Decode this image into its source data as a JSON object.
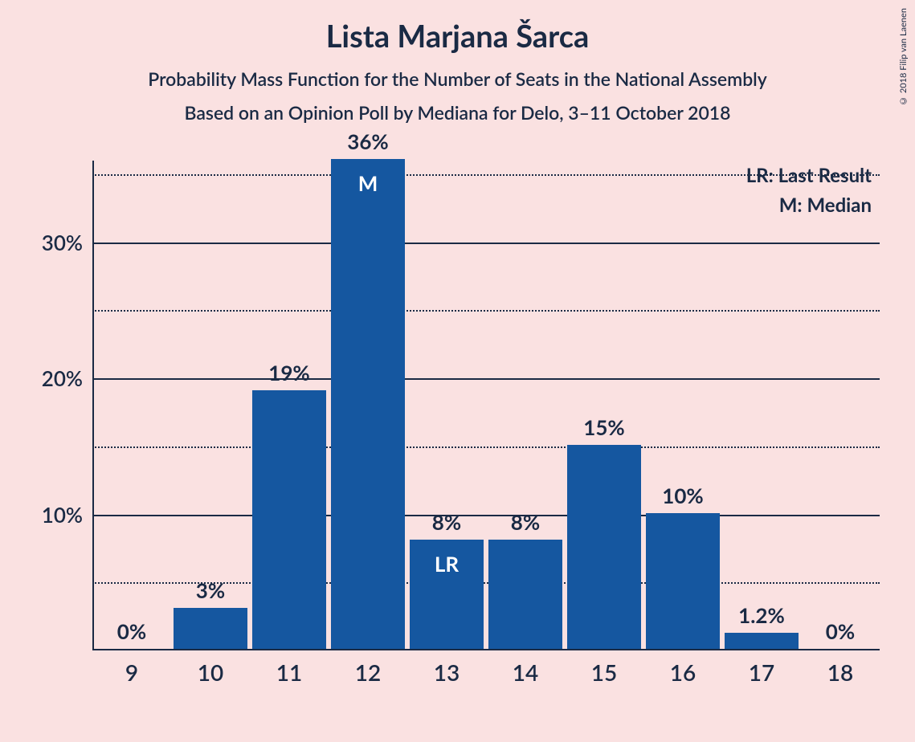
{
  "title": "Lista Marjana Šarca",
  "subtitle1": "Probability Mass Function for the Number of Seats in the National Assembly",
  "subtitle2": "Based on an Opinion Poll by Mediana for Delo, 3–11 October 2018",
  "copyright": "© 2018 Filip van Laenen",
  "legend": {
    "lr": "LR: Last Result",
    "m": "M: Median"
  },
  "chart": {
    "type": "bar",
    "bar_color": "#1557a0",
    "background_color": "#fae1e1",
    "axis_color": "#1a2a44",
    "text_color": "#1a2a44",
    "bar_label_color": "#ffffff",
    "title_fontsize": 38,
    "subtitle_fontsize": 23,
    "axis_label_fontsize": 26,
    "value_label_fontsize": 26,
    "x_label_fontsize": 28,
    "ylim": [
      0,
      36
    ],
    "y_major_ticks": [
      10,
      20,
      30
    ],
    "y_minor_ticks": [
      5,
      15,
      25,
      35
    ],
    "bar_width_ratio": 0.94,
    "categories": [
      "9",
      "10",
      "11",
      "12",
      "13",
      "14",
      "15",
      "16",
      "17",
      "18"
    ],
    "values": [
      0,
      3,
      19,
      36,
      8,
      8,
      15,
      10,
      1.2,
      0
    ],
    "value_labels": [
      "0%",
      "3%",
      "19%",
      "36%",
      "8%",
      "8%",
      "15%",
      "10%",
      "1.2%",
      "0%"
    ],
    "inner_labels": {
      "3": "M",
      "4": "LR"
    },
    "y_tick_labels": {
      "10": "10%",
      "20": "20%",
      "30": "30%"
    }
  }
}
